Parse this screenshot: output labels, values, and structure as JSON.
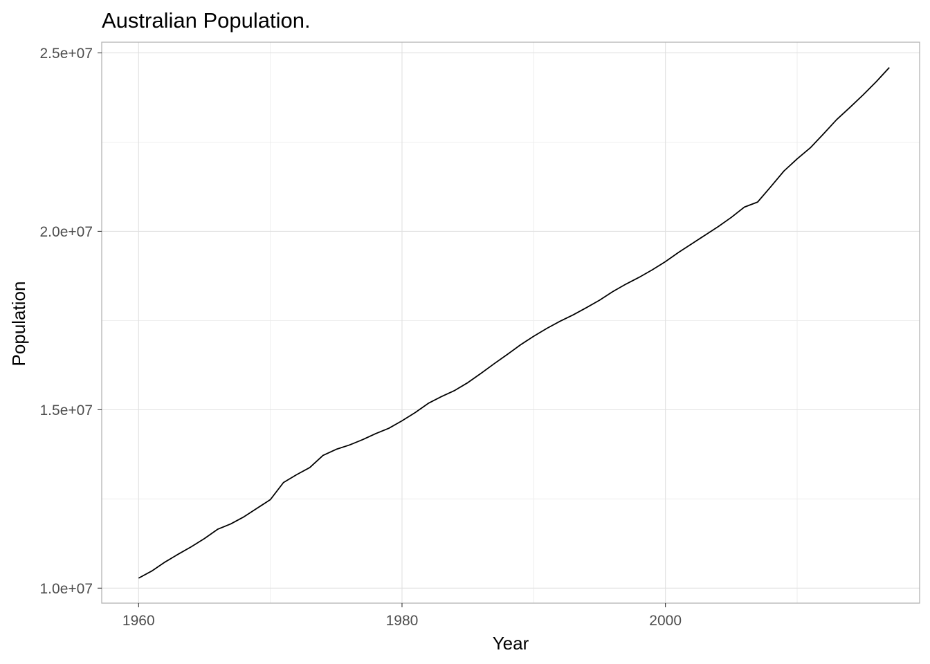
{
  "chart_data": {
    "type": "line",
    "title": "Australian Population.",
    "xlabel": "Year",
    "ylabel": "Population",
    "xlim": [
      1957.2,
      2019.3
    ],
    "ylim": [
      9580000,
      25300000
    ],
    "x_ticks": [
      1960,
      1980,
      2000
    ],
    "x_tick_labels": [
      "1960",
      "1980",
      "2000"
    ],
    "x_minor_ticks": [
      1970,
      1990,
      2010
    ],
    "y_ticks": [
      10000000,
      15000000,
      20000000,
      25000000
    ],
    "y_tick_labels": [
      "1.0e+07",
      "1.5e+07",
      "2.0e+07",
      "2.5e+07"
    ],
    "y_minor_ticks": [
      12500000,
      17500000,
      22500000
    ],
    "grid": true,
    "legend": "none",
    "line_color": "#000000",
    "series": [
      {
        "x": [
          1960,
          1961,
          1962,
          1963,
          1964,
          1965,
          1966,
          1967,
          1968,
          1969,
          1970,
          1971,
          1972,
          1973,
          1974,
          1975,
          1976,
          1977,
          1978,
          1979,
          1980,
          1981,
          1982,
          1983,
          1984,
          1985,
          1986,
          1987,
          1988,
          1989,
          1990,
          1991,
          1992,
          1993,
          1994,
          1995,
          1996,
          1997,
          1998,
          1999,
          2000,
          2001,
          2002,
          2003,
          2004,
          2005,
          2006,
          2007,
          2008,
          2009,
          2010,
          2011,
          2012,
          2013,
          2014,
          2015,
          2016,
          2017
        ],
        "values": [
          10280000,
          10480000,
          10730000,
          10950000,
          11160000,
          11390000,
          11650000,
          11800000,
          12000000,
          12240000,
          12480000,
          12960000,
          13180000,
          13380000,
          13720000,
          13890000,
          14010000,
          14160000,
          14330000,
          14480000,
          14690000,
          14920000,
          15180000,
          15370000,
          15540000,
          15760000,
          16020000,
          16290000,
          16550000,
          16820000,
          17060000,
          17280000,
          17480000,
          17660000,
          17860000,
          18070000,
          18310000,
          18520000,
          18710000,
          18920000,
          19150000,
          19410000,
          19650000,
          19890000,
          20130000,
          20390000,
          20680000,
          20820000,
          21250000,
          21690000,
          22030000,
          22340000,
          22730000,
          23130000,
          23470000,
          23820000,
          24190000,
          24590000
        ]
      }
    ]
  }
}
